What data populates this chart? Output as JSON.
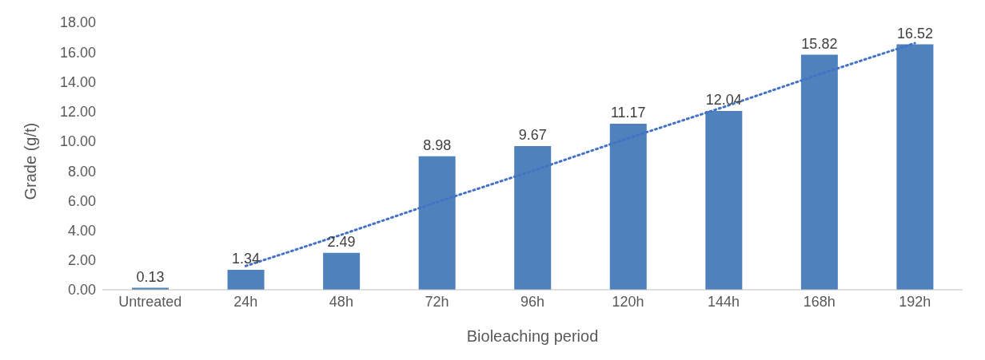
{
  "chart_data": {
    "type": "bar",
    "xlabel": "Bioleaching period",
    "ylabel": "Grade (g/t)",
    "categories": [
      "Untreated",
      "24h",
      "48h",
      "72h",
      "96h",
      "120h",
      "144h",
      "168h",
      "192h"
    ],
    "series": [
      {
        "color": "#4f81bd",
        "values": [
          0.13,
          1.34,
          2.49,
          8.98,
          9.67,
          11.17,
          12.04,
          15.82,
          16.52
        ],
        "value_labels": [
          "0.13",
          "1.34",
          "2.49",
          "8.98",
          "9.67",
          "11.17",
          "12.04",
          "15.82",
          "16.52"
        ]
      },
      {
        "type": "line",
        "color": "#4472c4",
        "line_style": "dotted",
        "marker": "none",
        "values": [
          null,
          1.6,
          3.7,
          5.9,
          8.0,
          10.2,
          12.3,
          14.5,
          16.6
        ]
      }
    ],
    "ylim": [
      0,
      18
    ],
    "yticks": [
      {
        "value": 0,
        "label": "0.00"
      },
      {
        "value": 2,
        "label": "2.00"
      },
      {
        "value": 4,
        "label": "4.00"
      },
      {
        "value": 6,
        "label": "6.00"
      },
      {
        "value": 8,
        "label": "8.00"
      },
      {
        "value": 10,
        "label": "10.00"
      },
      {
        "value": 12,
        "label": "12.00"
      },
      {
        "value": 14,
        "label": "14.00"
      },
      {
        "value": 16,
        "label": "16.00"
      },
      {
        "value": 18,
        "label": "18.00"
      }
    ],
    "grid": false,
    "legend": false
  }
}
